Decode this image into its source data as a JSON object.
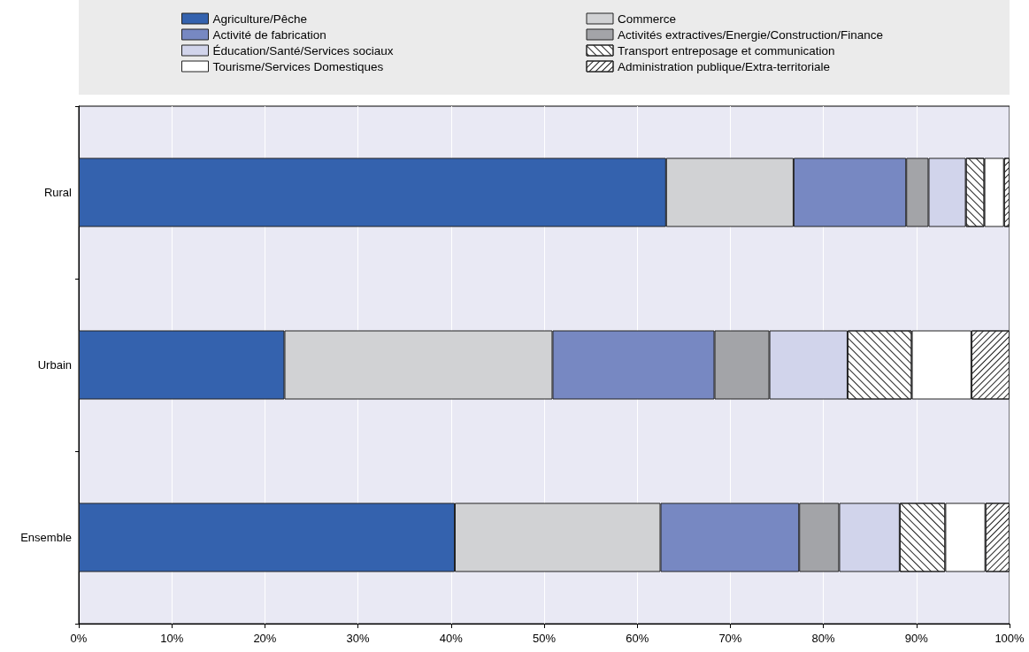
{
  "chart_data": {
    "type": "bar",
    "orientation": "horizontal",
    "stacked": true,
    "categories": [
      "Rural",
      "Urbain",
      "Ensemble"
    ],
    "series": [
      {
        "name": "Agriculture/Pêche",
        "color": "#3462ae",
        "values": [
          63.1,
          22.1,
          40.4
        ]
      },
      {
        "name": "Commerce",
        "color": "#d1d2d4",
        "values": [
          13.7,
          28.8,
          22.1
        ]
      },
      {
        "name": "Activité de fabrication",
        "color": "#7788c2",
        "values": [
          12.1,
          17.4,
          14.9
        ]
      },
      {
        "name": "Activités extractives/Energie/Construction/Finance",
        "color": "#a3a4a8",
        "values": [
          2.4,
          5.9,
          4.3
        ]
      },
      {
        "name": "Éducation/Santé/Services sociaux",
        "color": "#d1d4eb",
        "values": [
          4.0,
          8.4,
          6.5
        ]
      },
      {
        "name": "Transport entreposage et communication",
        "color": "#ffffff",
        "values": [
          2.0,
          6.9,
          4.9
        ]
      },
      {
        "name": "Tourisme/Services Domestiques",
        "color": "#ffffff",
        "values": [
          2.1,
          6.4,
          4.3
        ]
      },
      {
        "name": "Administration publique/Extra-territoriale",
        "color": "#ffffff",
        "values": [
          0.6,
          4.1,
          2.6
        ]
      }
    ],
    "xlim": [
      0,
      100
    ],
    "xticks": [
      {
        "value": 0,
        "label": "0%"
      },
      {
        "value": 10,
        "label": "10%"
      },
      {
        "value": 20,
        "label": "20%"
      },
      {
        "value": 30,
        "label": "30%"
      },
      {
        "value": 40,
        "label": "40%"
      },
      {
        "value": 50,
        "label": "50%"
      },
      {
        "value": 60,
        "label": "60%"
      },
      {
        "value": 70,
        "label": "70%"
      },
      {
        "value": 80,
        "label": "80%"
      },
      {
        "value": 90,
        "label": "90%"
      },
      {
        "value": 100,
        "label": "100%"
      }
    ],
    "grid": "x",
    "legend": "top"
  }
}
